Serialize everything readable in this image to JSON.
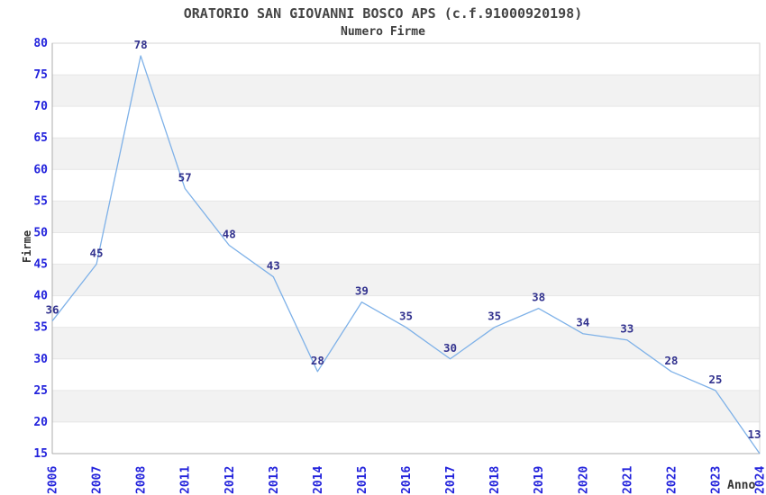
{
  "chart_data": {
    "type": "line",
    "title": "ORATORIO SAN GIOVANNI BOSCO APS (c.f.91000920198)",
    "subtitle": "Numero Firme",
    "xlabel": "Anno",
    "ylabel": "Firme",
    "categories": [
      "2006",
      "2007",
      "2008",
      "2011",
      "2012",
      "2013",
      "2014",
      "2015",
      "2016",
      "2017",
      "2018",
      "2019",
      "2020",
      "2021",
      "2022",
      "2023",
      "2024"
    ],
    "values": [
      36,
      45,
      78,
      57,
      48,
      43,
      28,
      39,
      35,
      30,
      35,
      38,
      34,
      33,
      28,
      25,
      13
    ],
    "ylim": [
      15,
      80
    ],
    "ytick_step": 5,
    "grid": true,
    "alternating_bands": true,
    "legend": "none",
    "point_labels_visible": true,
    "colors": {
      "line": "#7EB1E8",
      "tick_label": "#2323DC",
      "point_label": "#33338F",
      "band": "#F2F2F2",
      "gridline": "#E6E6E6",
      "plot_border": "#D6D6D6",
      "axis_border": "#ACACAC",
      "title_text": "#444444",
      "background": "#FFFFFF"
    }
  }
}
